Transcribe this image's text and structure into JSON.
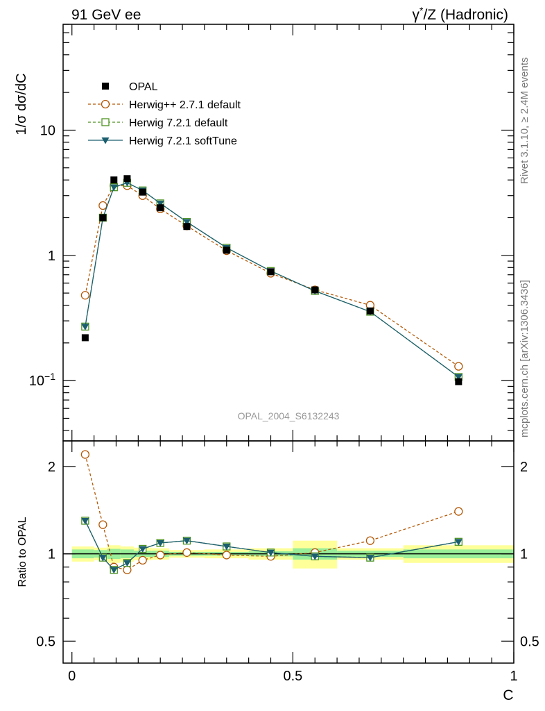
{
  "header": {
    "left_title": "91 GeV ee",
    "right_title_prefix": "γ",
    "right_title_sup": "*",
    "right_title_suffix": "/Z (Hadronic)"
  },
  "side_labels": {
    "rivet": "Rivet 3.1.10, ≥ 2.4M events",
    "mcplots": "mcplots.cern.ch [arXiv:1306.3436]"
  },
  "watermark": "OPAL_2004_S6132243",
  "chart_data": [
    {
      "type": "scatter",
      "panel": "main",
      "ylabel": "1/σ dσ/dC",
      "yscale": "log",
      "ylim": [
        0.033,
        70
      ],
      "xlim": [
        -0.02,
        1.0
      ],
      "y_ticks": [
        {
          "value": 10,
          "label": "10"
        },
        {
          "value": 1,
          "label": "1"
        },
        {
          "value": 0.1,
          "label": "10",
          "sup": "−1"
        }
      ],
      "legend": [
        {
          "name": "OPAL",
          "style": "square-filled",
          "color": "#000000"
        },
        {
          "name": "Herwig++ 2.7.1 default",
          "style": "circle-open-dashed",
          "color": "#b35806"
        },
        {
          "name": "Herwig 7.2.1 default",
          "style": "square-open-dashed",
          "color": "#4d9221"
        },
        {
          "name": "Herwig 7.2.1 softTune",
          "style": "triangle-down-solid",
          "color": "#1b5e6e"
        }
      ],
      "x": [
        0.03,
        0.07,
        0.095,
        0.125,
        0.16,
        0.2,
        0.26,
        0.35,
        0.45,
        0.55,
        0.675,
        0.875
      ],
      "series": [
        {
          "name": "OPAL",
          "values": [
            0.22,
            2.0,
            4.0,
            4.1,
            3.2,
            2.4,
            1.7,
            1.1,
            0.74,
            0.53,
            0.36,
            0.098
          ]
        },
        {
          "name": "Herwig++ 2.7.1 default",
          "values": [
            0.48,
            2.5,
            3.6,
            3.6,
            3.0,
            2.35,
            1.72,
            1.09,
            0.72,
            0.53,
            0.4,
            0.13
          ]
        },
        {
          "name": "Herwig 7.2.1 default",
          "values": [
            0.27,
            2.0,
            3.5,
            3.8,
            3.3,
            2.6,
            1.85,
            1.15,
            0.75,
            0.52,
            0.355,
            0.107
          ]
        },
        {
          "name": "Herwig 7.2.1 softTune",
          "values": [
            0.27,
            2.0,
            3.5,
            3.8,
            3.3,
            2.6,
            1.85,
            1.15,
            0.75,
            0.52,
            0.355,
            0.107
          ]
        }
      ]
    },
    {
      "type": "scatter",
      "panel": "ratio",
      "ylabel": "Ratio to OPAL",
      "xlabel": "C",
      "yscale": "log",
      "ylim": [
        0.42,
        2.45
      ],
      "xlim": [
        -0.02,
        1.0
      ],
      "y_ticks": [
        {
          "value": 2,
          "label": "2"
        },
        {
          "value": 1,
          "label": "1"
        },
        {
          "value": 0.5,
          "label": "0.5"
        }
      ],
      "x_ticks": [
        {
          "value": 0,
          "label": "0"
        },
        {
          "value": 0.5,
          "label": "0.5"
        },
        {
          "value": 1,
          "label": "1"
        }
      ],
      "x": [
        0.03,
        0.07,
        0.095,
        0.125,
        0.16,
        0.2,
        0.26,
        0.35,
        0.45,
        0.55,
        0.675,
        0.875
      ],
      "bands": [
        {
          "x0": 0.0,
          "x1": 0.05,
          "inner": 0.035,
          "outer": 0.06
        },
        {
          "x0": 0.05,
          "x1": 0.08,
          "inner": 0.03,
          "outer": 0.05
        },
        {
          "x0": 0.08,
          "x1": 0.11,
          "inner": 0.04,
          "outer": 0.07
        },
        {
          "x0": 0.11,
          "x1": 0.14,
          "inner": 0.035,
          "outer": 0.06
        },
        {
          "x0": 0.14,
          "x1": 0.18,
          "inner": 0.025,
          "outer": 0.05
        },
        {
          "x0": 0.18,
          "x1": 0.22,
          "inner": 0.025,
          "outer": 0.045
        },
        {
          "x0": 0.22,
          "x1": 0.3,
          "inner": 0.015,
          "outer": 0.03
        },
        {
          "x0": 0.3,
          "x1": 0.4,
          "inner": 0.015,
          "outer": 0.035
        },
        {
          "x0": 0.4,
          "x1": 0.5,
          "inner": 0.02,
          "outer": 0.045
        },
        {
          "x0": 0.5,
          "x1": 0.6,
          "inner": 0.045,
          "outer": 0.11
        },
        {
          "x0": 0.6,
          "x1": 0.75,
          "inner": 0.025,
          "outer": 0.045
        },
        {
          "x0": 0.75,
          "x1": 1.0,
          "inner": 0.035,
          "outer": 0.07
        }
      ],
      "series": [
        {
          "name": "Herwig++ 2.7.1 default",
          "values": [
            2.2,
            1.26,
            0.9,
            0.88,
            0.95,
            0.99,
            1.01,
            0.99,
            0.98,
            1.01,
            1.11,
            1.4
          ]
        },
        {
          "name": "Herwig 7.2.1 default",
          "values": [
            1.3,
            0.97,
            0.88,
            0.93,
            1.04,
            1.09,
            1.11,
            1.06,
            1.01,
            0.98,
            0.97,
            1.1
          ]
        },
        {
          "name": "Herwig 7.2.1 softTune",
          "values": [
            1.3,
            0.97,
            0.88,
            0.93,
            1.04,
            1.09,
            1.11,
            1.06,
            1.01,
            0.98,
            0.97,
            1.1
          ]
        }
      ]
    }
  ]
}
